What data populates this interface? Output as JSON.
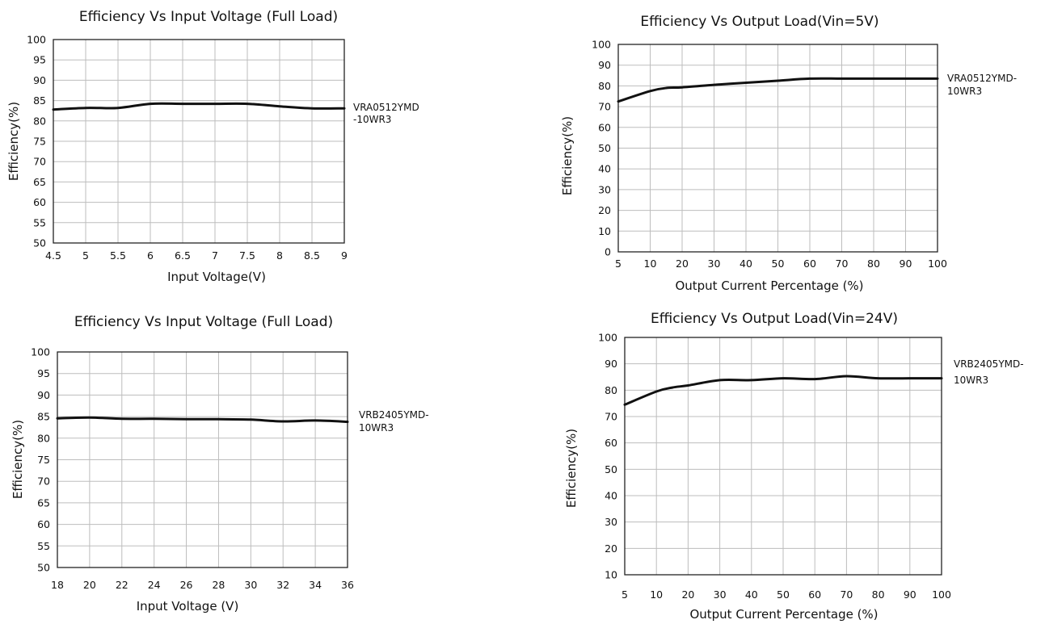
{
  "chart_data": [
    {
      "type": "line",
      "title": "Efficiency Vs Input Voltage (Full Load)",
      "xlabel": "Input Voltage(V)",
      "ylabel": "Efficiency(%)",
      "x_ticks": [
        "4.5",
        "5",
        "5.5",
        "6",
        "6.5",
        "7",
        "7.5",
        "8",
        "8.5",
        "9"
      ],
      "y_ticks": [
        "50",
        "55",
        "60",
        "65",
        "70",
        "75",
        "80",
        "85",
        "90",
        "95",
        "100"
      ],
      "xlim": [
        4.5,
        9
      ],
      "ylim": [
        50,
        100
      ],
      "grid": true,
      "series": [
        {
          "name": "VRA0512YMD-10WR3",
          "label_lines": [
            "VRA0512YMD",
            "-10WR3"
          ],
          "x": [
            4.5,
            5,
            5.5,
            6,
            6.5,
            7,
            7.5,
            8,
            8.5,
            9
          ],
          "y": [
            82.8,
            83.2,
            83.2,
            84.2,
            84.2,
            84.2,
            84.2,
            83.6,
            83.1,
            83.1
          ]
        }
      ]
    },
    {
      "type": "line",
      "title": "Efficiency Vs Output Load(Vin=5V)",
      "xlabel": "Output Current Percentage (%)",
      "ylabel": "Efficiency(%)",
      "x_ticks": [
        "5",
        "10",
        "20",
        "30",
        "40",
        "50",
        "60",
        "70",
        "80",
        "90",
        "100"
      ],
      "y_ticks": [
        "0",
        "10",
        "20",
        "30",
        "40",
        "50",
        "60",
        "70",
        "80",
        "90",
        "100"
      ],
      "xlim": [
        5,
        100
      ],
      "ylim": [
        0,
        100
      ],
      "grid": true,
      "series": [
        {
          "name": "VRA0512YMD-10WR3",
          "label_lines": [
            "VRA0512YMD-",
            "10WR3"
          ],
          "x": [
            5,
            10,
            15,
            20,
            30,
            40,
            50,
            60,
            70,
            80,
            90,
            100
          ],
          "y": [
            72.5,
            77.5,
            79,
            79.3,
            80.5,
            81.5,
            82.5,
            83.5,
            83.5,
            83.5,
            83.5,
            83.5
          ]
        }
      ]
    },
    {
      "type": "line",
      "title": "Efficiency Vs Input Voltage (Full Load)",
      "xlabel": "Input Voltage (V)",
      "ylabel": "Efficiency(%)",
      "x_ticks": [
        "18",
        "20",
        "22",
        "24",
        "26",
        "28",
        "30",
        "32",
        "34",
        "36"
      ],
      "y_ticks": [
        "50",
        "55",
        "60",
        "65",
        "70",
        "75",
        "80",
        "85",
        "90",
        "95",
        "100"
      ],
      "xlim": [
        18,
        36
      ],
      "ylim": [
        50,
        100
      ],
      "grid": true,
      "series": [
        {
          "name": "VRB2405YMD-10WR3",
          "label_lines": [
            "VRB2405YMD-",
            "10WR3"
          ],
          "x": [
            18,
            20,
            22,
            24,
            26,
            28,
            30,
            32,
            34,
            36
          ],
          "y": [
            84.6,
            84.8,
            84.5,
            84.5,
            84.4,
            84.4,
            84.3,
            83.9,
            84.1,
            83.8
          ]
        }
      ]
    },
    {
      "type": "line",
      "title": "Efficiency Vs Output Load(Vin=24V)",
      "xlabel": "Output Current Percentage (%)",
      "ylabel": "Efficiency(%)",
      "x_ticks": [
        "5",
        "10",
        "20",
        "30",
        "40",
        "50",
        "60",
        "70",
        "80",
        "90",
        "100"
      ],
      "y_ticks": [
        "10",
        "20",
        "30",
        "40",
        "50",
        "60",
        "70",
        "80",
        "90",
        "100"
      ],
      "xlim": [
        5,
        100
      ],
      "ylim": [
        10,
        100
      ],
      "grid": true,
      "series": [
        {
          "name": "VRB2405YMD-10WR3",
          "label_lines": [
            "VRB2405YMD-",
            "10WR3"
          ],
          "x": [
            5,
            10,
            15,
            20,
            30,
            40,
            50,
            60,
            70,
            80,
            90,
            100
          ],
          "y": [
            74.5,
            79.5,
            81,
            81.8,
            83.8,
            83.8,
            84.5,
            84.2,
            85.3,
            84.5,
            84.5,
            84.5
          ]
        }
      ]
    }
  ]
}
